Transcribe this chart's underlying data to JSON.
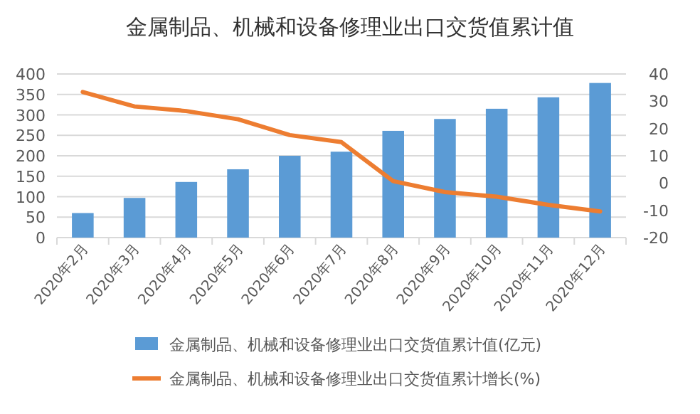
{
  "chart_data": {
    "type": "bar",
    "title": "金属制品、机械和设备修理业出口交货值累计值",
    "categories": [
      "2020年2月",
      "2020年3月",
      "2020年4月",
      "2020年5月",
      "2020年6月",
      "2020年7月",
      "2020年8月",
      "2020年9月",
      "2020年10月",
      "2020年11月",
      "2020年12月"
    ],
    "series": [
      {
        "name": "金属制品、机械和设备修理业出口交货值累计值(亿元)",
        "color": "#5b9bd5",
        "values": [
          60,
          97,
          136,
          167,
          200,
          210,
          261,
          290,
          315,
          343,
          378
        ]
      },
      {
        "name": "金属制品、机械和设备修理业出口交货值累计增长(%)",
        "color": "#ed7d31",
        "type": "line",
        "axis": "y2",
        "values": [
          33.4,
          28.1,
          26.4,
          23.4,
          17.6,
          15,
          0.7,
          -3.3,
          -5,
          -8,
          -10.4
        ]
      }
    ],
    "ylim": [
      0,
      400
    ],
    "yticks": [
      0,
      50,
      100,
      150,
      200,
      250,
      300,
      350,
      400
    ],
    "y2lim": [
      -20,
      40
    ],
    "y2ticks": [
      -20,
      -10,
      0,
      10,
      20,
      30,
      40
    ],
    "grid": "y",
    "legend": "bottom"
  }
}
